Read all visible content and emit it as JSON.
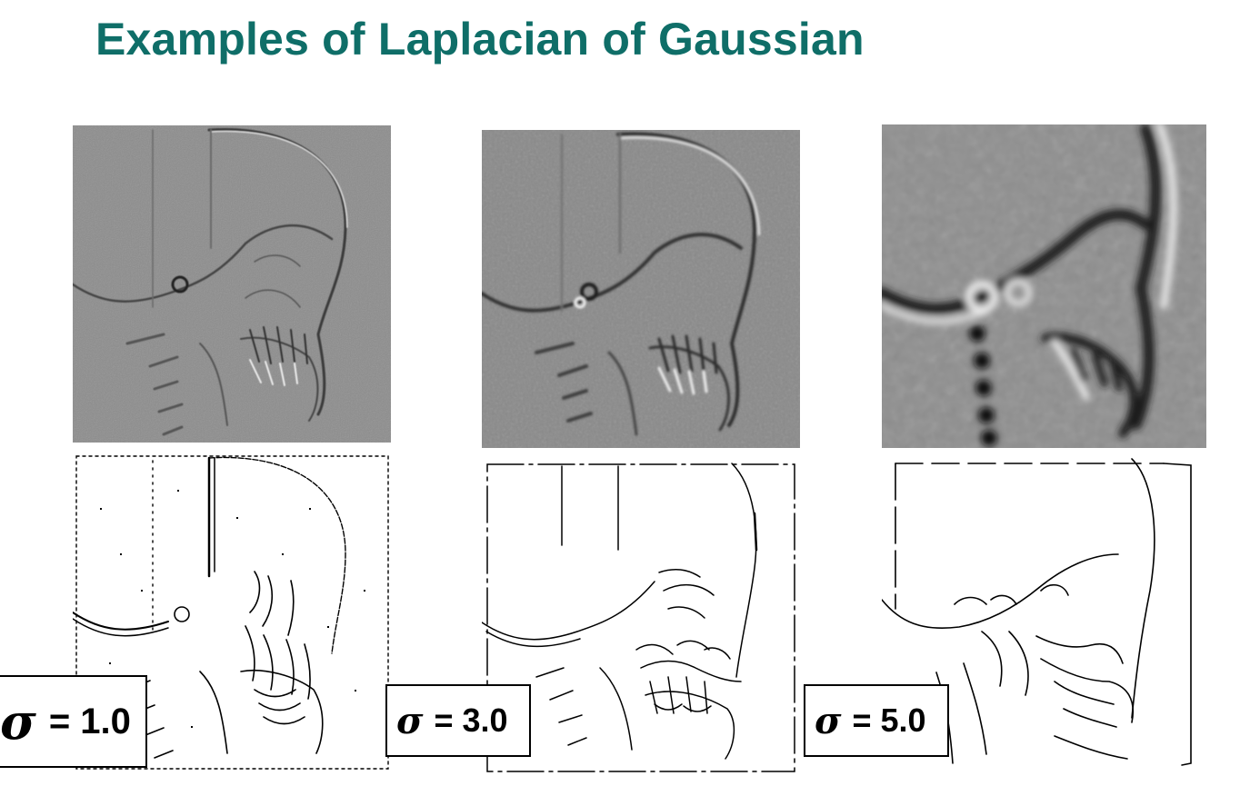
{
  "slide": {
    "title": "Examples of Laplacian of Gaussian"
  },
  "panels": [
    {
      "sigma_symbol": "σ",
      "sigma_value": "= 1.0"
    },
    {
      "sigma_symbol": "σ",
      "sigma_value": "= 3.0"
    },
    {
      "sigma_symbol": "σ",
      "sigma_value": "= 5.0"
    }
  ],
  "colors": {
    "title": "#0f6e68",
    "log_background": "#8a8a8a",
    "edge_line": "#000000"
  }
}
